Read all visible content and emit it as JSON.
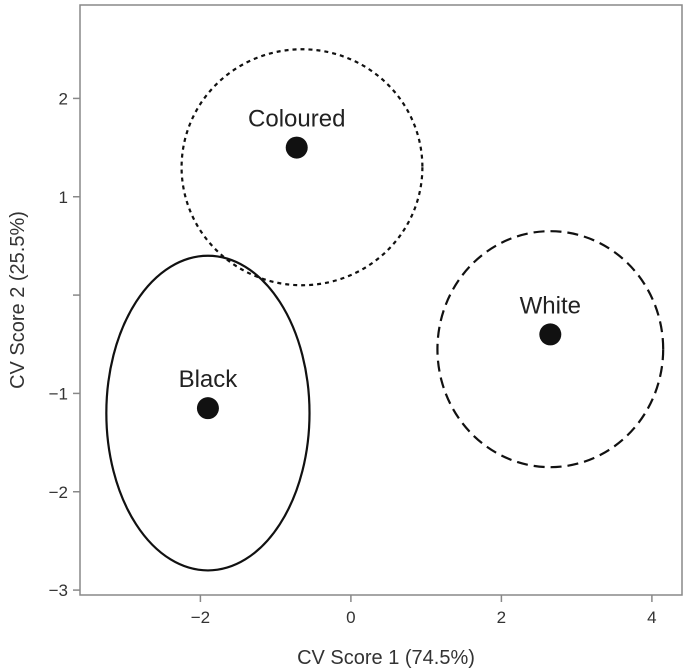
{
  "chart_data": {
    "type": "scatter",
    "title": "",
    "xlabel": "CV Score 1 (74.5%)",
    "ylabel": "CV Score 2 (25.5%)",
    "xlim": [
      -3.6,
      4.4
    ],
    "ylim": [
      -3.05,
      2.95
    ],
    "xticks": [
      {
        "value": -2,
        "label": "−2"
      },
      {
        "value": 0,
        "label": "0"
      },
      {
        "value": 2,
        "label": "2"
      },
      {
        "value": 4,
        "label": "4"
      }
    ],
    "yticks": [
      {
        "value": -3,
        "label": "−3"
      },
      {
        "value": -2,
        "label": "−2"
      },
      {
        "value": -1,
        "label": "−1"
      },
      {
        "value": 0,
        "label": ""
      },
      {
        "value": 1,
        "label": "1"
      },
      {
        "value": 2,
        "label": "2"
      }
    ],
    "grid": false,
    "groups": [
      {
        "name": "Coloured",
        "centroid": {
          "x": -0.72,
          "y": 1.5
        },
        "ellipse": {
          "cx": -0.65,
          "cy": 1.3,
          "rx": 1.6,
          "ry": 1.2,
          "style": "dotted"
        }
      },
      {
        "name": "White",
        "centroid": {
          "x": 2.65,
          "y": -0.4
        },
        "ellipse": {
          "cx": 2.65,
          "cy": -0.55,
          "rx": 1.5,
          "ry": 1.2,
          "style": "dashed"
        }
      },
      {
        "name": "Black",
        "centroid": {
          "x": -1.9,
          "y": -1.15
        },
        "ellipse": {
          "cx": -1.9,
          "cy": -1.2,
          "rx": 1.35,
          "ry": 1.6,
          "style": "solid"
        }
      }
    ]
  }
}
